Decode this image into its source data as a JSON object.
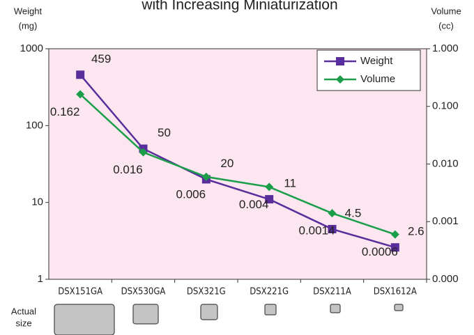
{
  "chart_data": {
    "type": "line",
    "title": "with Increasing Miniaturization",
    "ylabel": [
      "Weight",
      "(mg)"
    ],
    "y2label": [
      "Volume",
      "(cc)"
    ],
    "footer_label": [
      "Actual",
      "size"
    ],
    "categories": [
      "DSX151GA",
      "DSX530GA",
      "DSX321G",
      "DSX221G",
      "DSX211A",
      "DSX1612A"
    ],
    "series": [
      {
        "name": "Weight",
        "color": "#5a2d9c",
        "values": [
          459,
          50,
          20,
          11,
          4.5,
          2.6
        ]
      },
      {
        "name": "Volume",
        "color": "#1a9e4a",
        "axis": "y2",
        "values": [
          0.162,
          0.016,
          0.006,
          0.004,
          0.0014,
          0.0006
        ]
      }
    ],
    "ylim": [
      1,
      1000
    ],
    "yticks": [
      1,
      10,
      100,
      1000
    ],
    "y2lim": [
      0.0001,
      1
    ],
    "y2ticks": [
      {
        "value": 0.0001,
        "label": "0.000"
      },
      {
        "value": 0.001,
        "label": "0.001"
      },
      {
        "value": 0.01,
        "label": "0.010"
      },
      {
        "value": 0.1,
        "label": "0.100"
      },
      {
        "value": 1,
        "label": "1.000"
      }
    ],
    "log_scale": true,
    "plot_background": "#fce6ef",
    "legend": "upper right"
  }
}
